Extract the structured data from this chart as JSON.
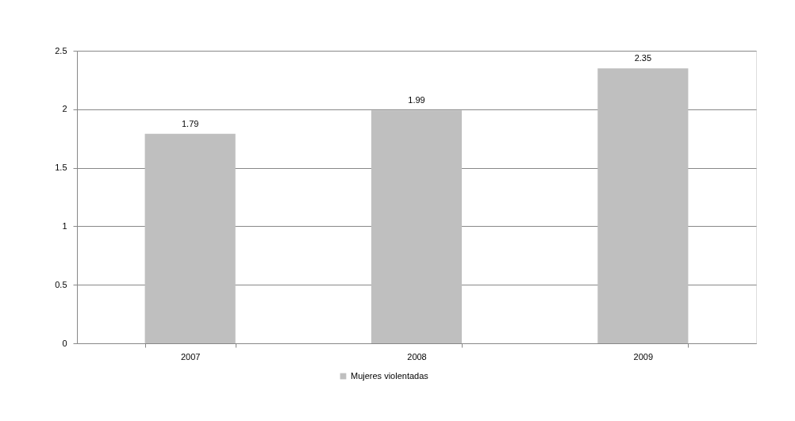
{
  "chart_data": {
    "type": "bar",
    "categories": [
      "2007",
      "2008",
      "2009"
    ],
    "series": [
      {
        "name": "Mujeres violentadas",
        "color": "#bfbfbf",
        "values": [
          1.79,
          1.99,
          2.35
        ]
      }
    ],
    "ylim": [
      0,
      2.5
    ],
    "yticks": [
      0,
      0.5,
      1,
      1.5,
      2,
      2.5
    ],
    "grid": "y",
    "legend": "bottom",
    "data_labels": true
  }
}
